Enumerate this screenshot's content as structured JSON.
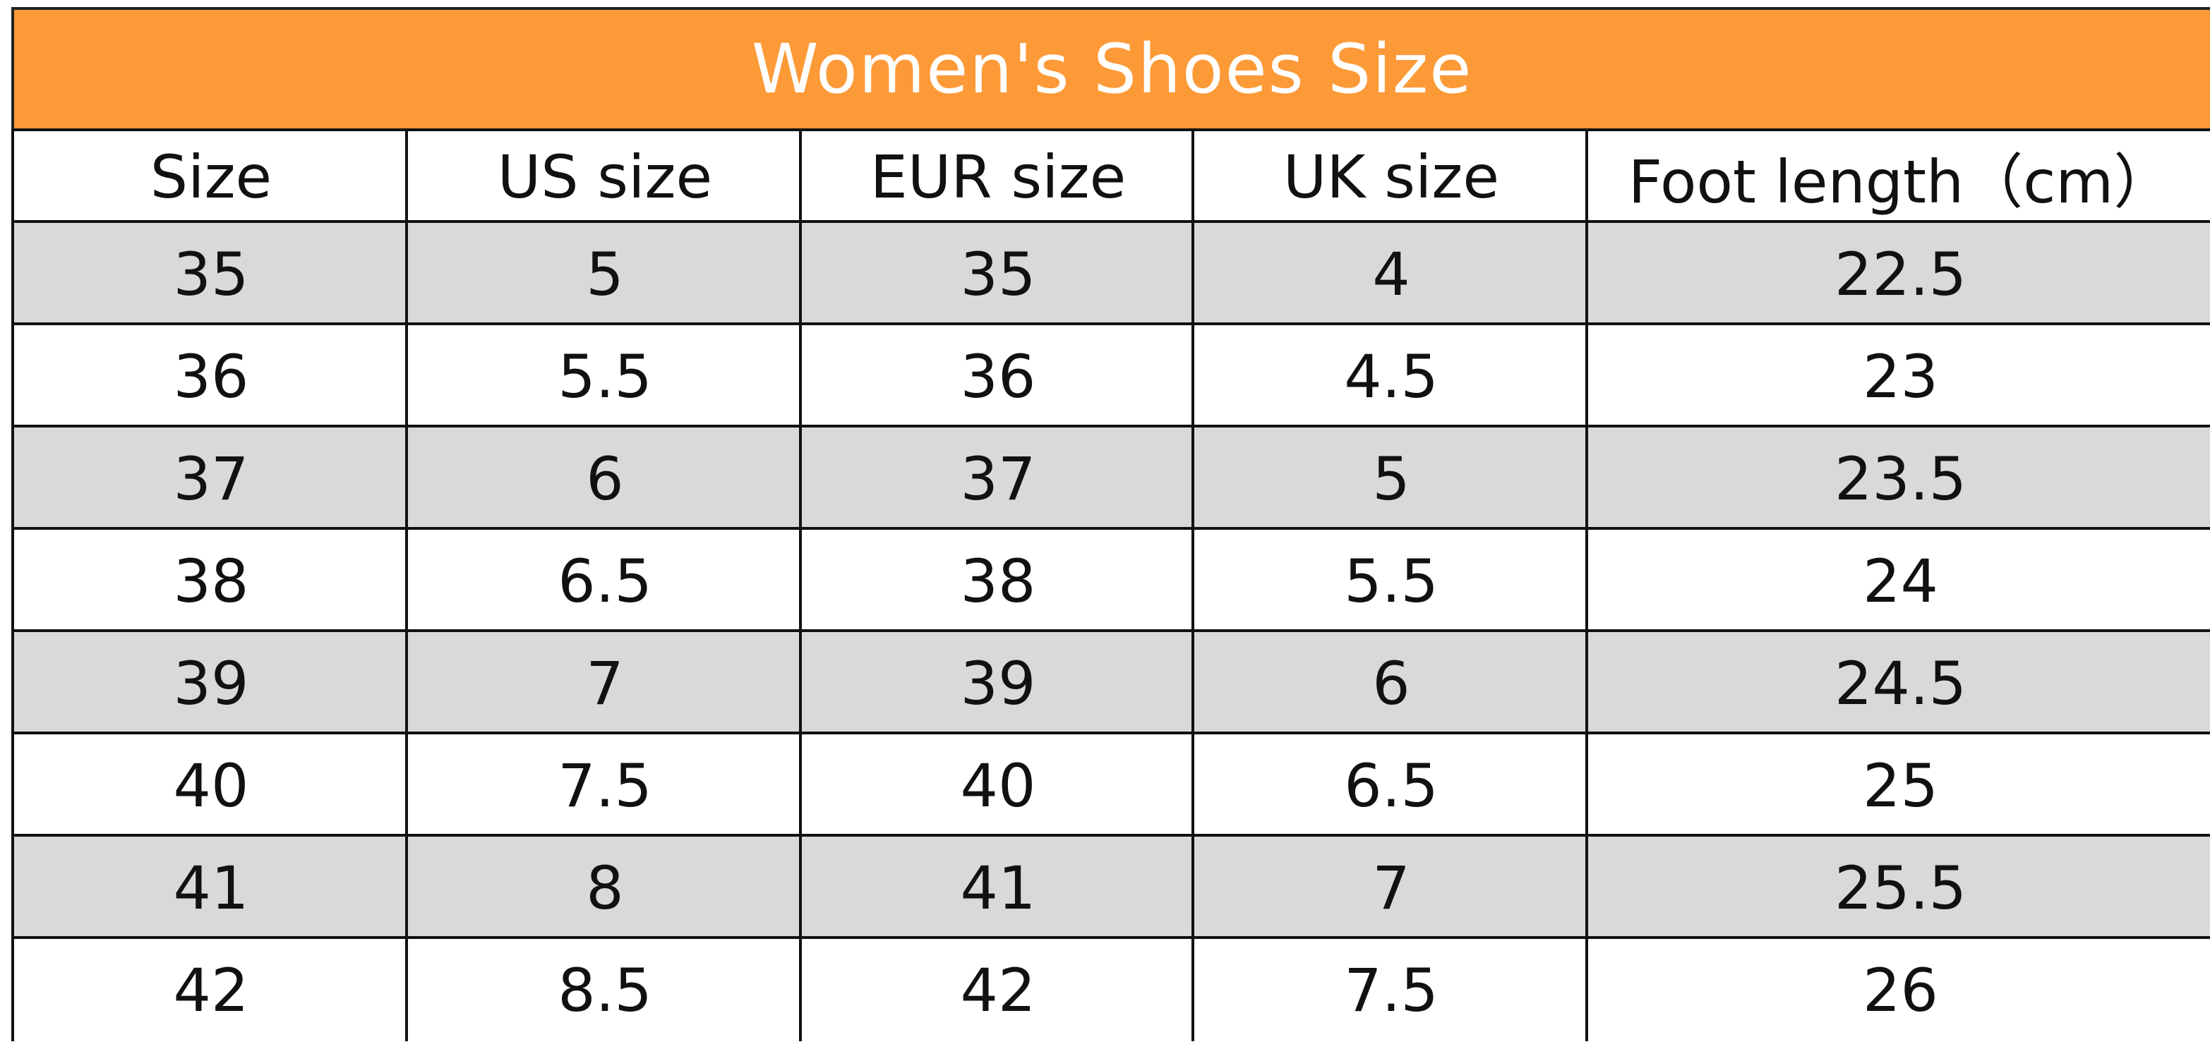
{
  "title": "Women's Shoes Size",
  "table": {
    "columns": [
      "Size",
      "US size",
      "EUR size",
      "UK size",
      "Foot length（cm）"
    ],
    "rows": [
      [
        35,
        5,
        35,
        4,
        22.5
      ],
      [
        36,
        5.5,
        36,
        4.5,
        23
      ],
      [
        37,
        6,
        37,
        5,
        23.5
      ],
      [
        38,
        6.5,
        38,
        5.5,
        24
      ],
      [
        39,
        7,
        39,
        6,
        24.5
      ],
      [
        40,
        7.5,
        40,
        6.5,
        25
      ],
      [
        41,
        8,
        41,
        7,
        25.5
      ],
      [
        42,
        8.5,
        42,
        7.5,
        26
      ]
    ]
  }
}
